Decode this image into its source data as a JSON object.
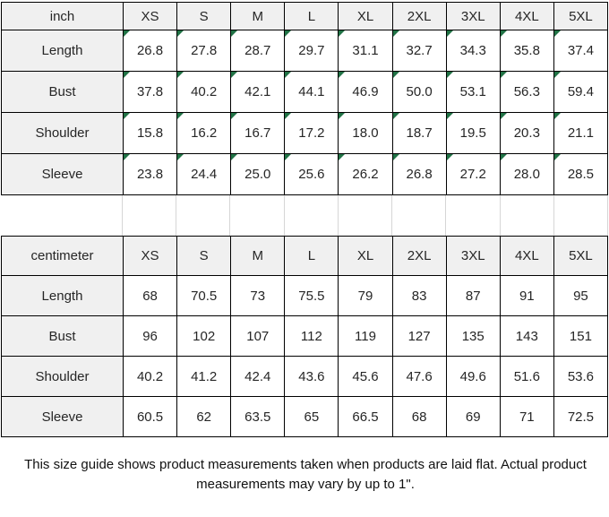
{
  "chart_data": [
    {
      "type": "table",
      "title": "inch",
      "columns": [
        "inch",
        "XS",
        "S",
        "M",
        "L",
        "XL",
        "2XL",
        "3XL",
        "4XL",
        "5XL"
      ],
      "rows": [
        [
          "Length",
          "26.8",
          "27.8",
          "28.7",
          "29.7",
          "31.1",
          "32.7",
          "34.3",
          "35.8",
          "37.4"
        ],
        [
          "Bust",
          "37.8",
          "40.2",
          "42.1",
          "44.1",
          "46.9",
          "50.0",
          "53.1",
          "56.3",
          "59.4"
        ],
        [
          "Shoulder",
          "15.8",
          "16.2",
          "16.7",
          "17.2",
          "18.0",
          "18.7",
          "19.5",
          "20.3",
          "21.1"
        ],
        [
          "Sleeve",
          "23.8",
          "24.4",
          "25.0",
          "25.6",
          "26.2",
          "26.8",
          "27.2",
          "28.0",
          "28.5"
        ]
      ],
      "flagged_numeric_cells": true
    },
    {
      "type": "table",
      "title": "centimeter",
      "columns": [
        "centimeter",
        "XS",
        "S",
        "M",
        "L",
        "XL",
        "2XL",
        "3XL",
        "4XL",
        "5XL"
      ],
      "rows": [
        [
          "Length",
          "68",
          "70.5",
          "73",
          "75.5",
          "79",
          "83",
          "87",
          "91",
          "95"
        ],
        [
          "Bust",
          "96",
          "102",
          "107",
          "112",
          "119",
          "127",
          "135",
          "143",
          "151"
        ],
        [
          "Shoulder",
          "40.2",
          "41.2",
          "42.4",
          "43.6",
          "45.6",
          "47.6",
          "49.6",
          "51.6",
          "53.6"
        ],
        [
          "Sleeve",
          "60.5",
          "62",
          "63.5",
          "65",
          "66.5",
          "68",
          "69",
          "71",
          "72.5"
        ]
      ],
      "flagged_numeric_cells": false
    }
  ],
  "footer": {
    "note": "This size guide shows product measurements taken when products are laid flat. Actual product measurements may vary by up to 1\"."
  },
  "styles": {
    "header_fill": "#f0f0f0",
    "border_color": "#000000",
    "flag_color": "#217346",
    "faint_gridline": "#d6d6d6",
    "text_color": "#262626"
  }
}
